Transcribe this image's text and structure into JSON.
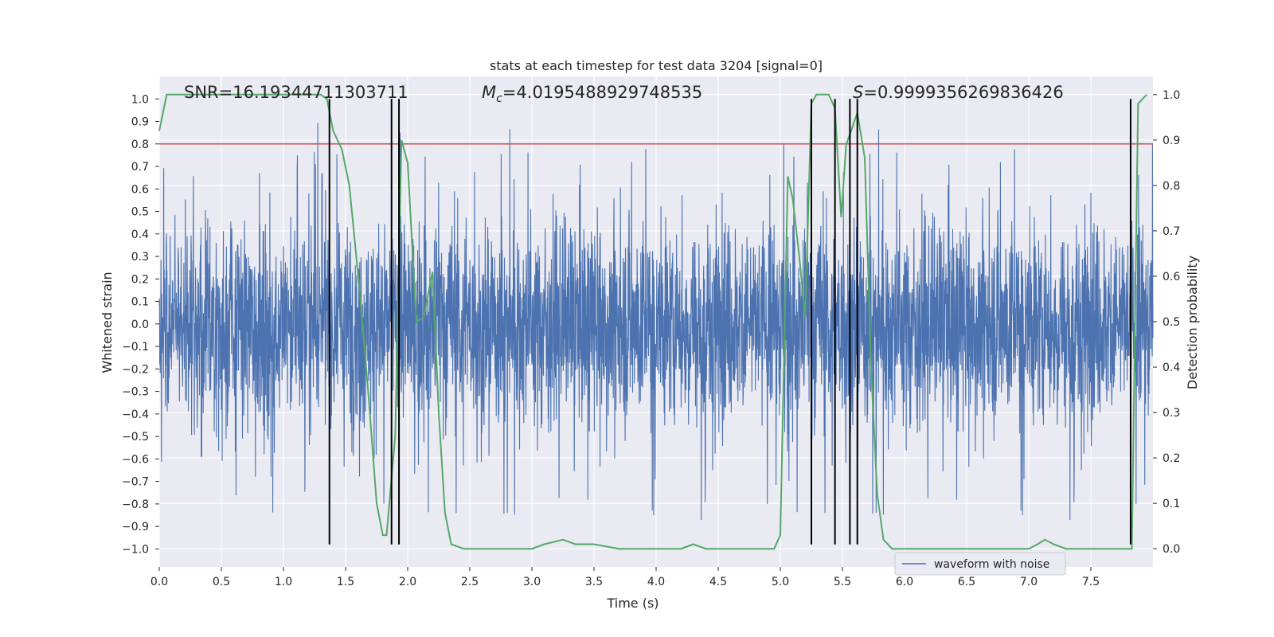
{
  "chart_data": {
    "type": "line",
    "title": "stats at each timestep for test data 3204 [signal=0]",
    "xlabel": "Time (s)",
    "ylabel_left": "Whitened strain",
    "ylabel_right": "Detection probability",
    "xlim": [
      0,
      8
    ],
    "ylim_left": [
      -1.08,
      1.1
    ],
    "ylim_right": [
      -0.04,
      1.04
    ],
    "x_ticks": [
      "0.0",
      "0.5",
      "1.0",
      "1.5",
      "2.0",
      "2.5",
      "3.0",
      "3.5",
      "4.0",
      "4.5",
      "5.0",
      "5.5",
      "6.0",
      "6.5",
      "7.0",
      "7.5"
    ],
    "y_ticks_left": [
      "1.0",
      "0.9",
      "0.8",
      "0.7",
      "0.6",
      "0.5",
      "0.4",
      "0.3",
      "0.2",
      "0.1",
      "0.0",
      "−0.1",
      "−0.2",
      "−0.3",
      "−0.4",
      "−0.5",
      "−0.6",
      "−0.7",
      "−0.8",
      "−0.9",
      "−1.0"
    ],
    "y_ticks_right": [
      "1.0",
      "0.9",
      "0.8",
      "0.7",
      "0.6",
      "0.5",
      "0.4",
      "0.3",
      "0.2",
      "0.1",
      "0.0"
    ],
    "grid": true,
    "legend_position": "lower-right",
    "annotations": {
      "snr": "SNR=16.19344711303711",
      "mc": "=4.0195488929748535",
      "mc_symbol": "M",
      "mc_sub": "c",
      "s": "=0.9999356269836426",
      "s_symbol": "S"
    },
    "threshold": {
      "value": 0.8,
      "color": "#c44e52"
    },
    "vertical_lines_x": [
      1.37,
      1.87,
      1.93,
      5.25,
      5.44,
      5.56,
      5.62,
      7.82
    ],
    "series": [
      {
        "name": "waveform with noise",
        "color": "#4c72b0",
        "axis": "left",
        "description_type": "noise",
        "envelope": {
          "typical_abs": 0.4,
          "peak_max": 1.0,
          "peak_min": -0.98
        }
      },
      {
        "color": "#55a868",
        "axis": "right",
        "x": [
          0.0,
          0.06,
          0.12,
          0.2,
          0.3,
          0.4,
          0.5,
          0.6,
          0.7,
          0.8,
          0.9,
          1.0,
          1.1,
          1.2,
          1.3,
          1.35,
          1.4,
          1.47,
          1.53,
          1.62,
          1.69,
          1.75,
          1.8,
          1.83,
          1.9,
          1.95,
          2.0,
          2.07,
          2.13,
          2.2,
          2.25,
          2.3,
          2.35,
          2.45,
          2.55,
          2.7,
          2.85,
          3.0,
          3.1,
          3.25,
          3.35,
          3.5,
          3.7,
          3.9,
          4.1,
          4.2,
          4.3,
          4.4,
          4.55,
          4.7,
          4.85,
          4.95,
          5.0,
          5.06,
          5.1,
          5.15,
          5.2,
          5.25,
          5.29,
          5.34,
          5.39,
          5.44,
          5.49,
          5.53,
          5.57,
          5.62,
          5.68,
          5.73,
          5.78,
          5.83,
          5.9,
          6.0,
          6.2,
          6.5,
          6.8,
          7.0,
          7.07,
          7.13,
          7.2,
          7.3,
          7.5,
          7.7,
          7.8,
          7.83,
          7.88,
          7.95
        ],
        "y": [
          0.92,
          1.0,
          1.0,
          1.0,
          1.0,
          1.0,
          1.0,
          1.0,
          1.0,
          1.0,
          1.0,
          1.0,
          1.0,
          1.0,
          1.0,
          0.99,
          0.92,
          0.88,
          0.8,
          0.55,
          0.32,
          0.1,
          0.03,
          0.03,
          0.25,
          0.9,
          0.85,
          0.5,
          0.51,
          0.61,
          0.3,
          0.08,
          0.01,
          0.0,
          0.0,
          0.0,
          0.0,
          0.0,
          0.01,
          0.02,
          0.01,
          0.01,
          0.0,
          0.0,
          0.0,
          0.0,
          0.01,
          0.0,
          0.0,
          0.0,
          0.0,
          0.0,
          0.03,
          0.82,
          0.77,
          0.65,
          0.51,
          0.98,
          1.0,
          1.0,
          1.0,
          0.97,
          0.73,
          0.89,
          0.92,
          0.96,
          0.86,
          0.4,
          0.12,
          0.02,
          0.0,
          0.0,
          0.0,
          0.0,
          0.0,
          0.0,
          0.01,
          0.02,
          0.01,
          0.0,
          0.0,
          0.0,
          0.0,
          0.0,
          0.98,
          1.0
        ]
      }
    ]
  }
}
